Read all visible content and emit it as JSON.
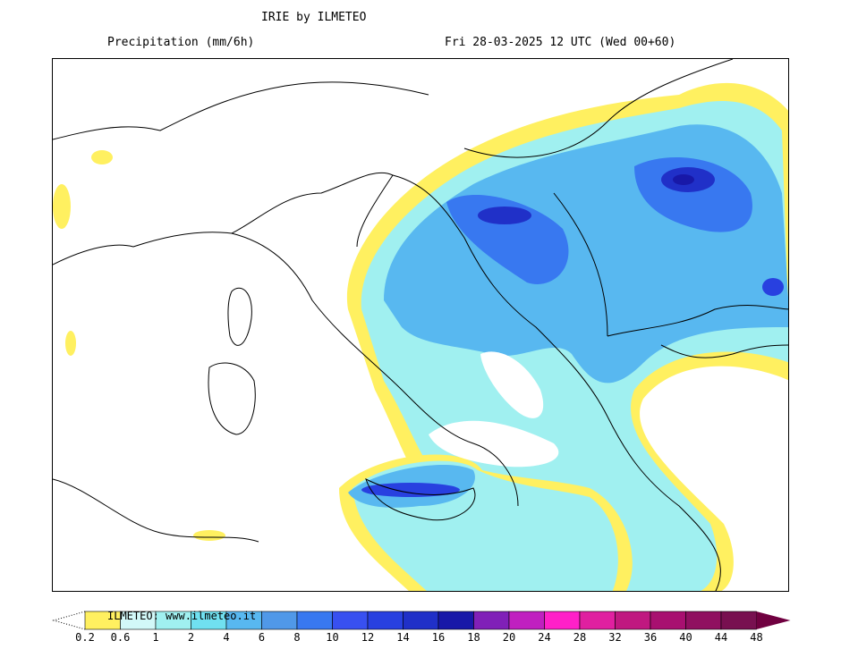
{
  "header": {
    "title": "IRIE by ILMETEO",
    "variable": "Precipitation (mm/6h)",
    "valid_time": "Fri 28-03-2025 12 UTC (Wed 00+60)"
  },
  "legend": {
    "watermark": "ILMETEO: www.ilmeteo.it",
    "labels": [
      "0.2",
      "0.6",
      "1",
      "2",
      "4",
      "6",
      "8",
      "10",
      "12",
      "14",
      "16",
      "18",
      "20",
      "24",
      "28",
      "32",
      "36",
      "40",
      "44",
      "48"
    ],
    "colors": [
      "#fff060",
      "#d2f8f8",
      "#a0f0f0",
      "#70e0f0",
      "#58b8f0",
      "#5098e8",
      "#3878f0",
      "#3850f0",
      "#2840e0",
      "#2030c8",
      "#1818a8",
      "#8020b8",
      "#c020c0",
      "#ff20c8",
      "#e020a0",
      "#c01880",
      "#a81070",
      "#901060",
      "#781050"
    ],
    "over_color": "#700040"
  },
  "map": {
    "region": "Italy and Balkans",
    "units": "mm/6h"
  }
}
